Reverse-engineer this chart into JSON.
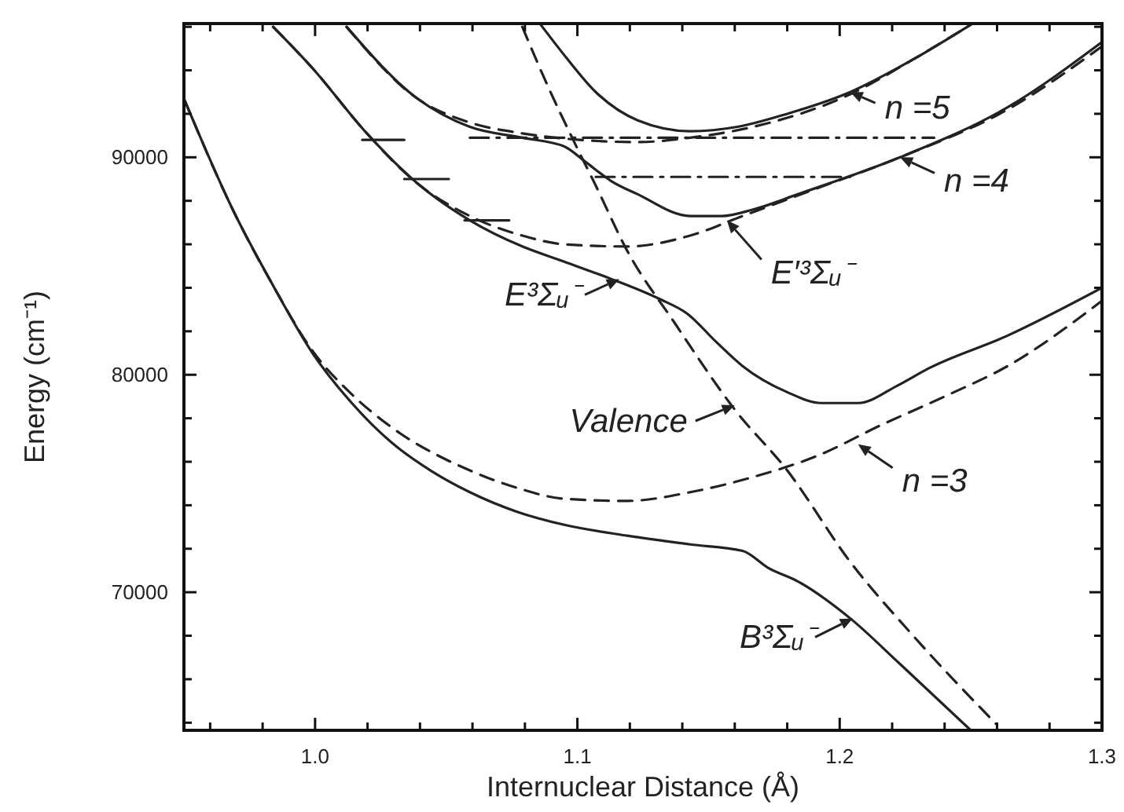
{
  "chart_data": {
    "type": "line",
    "xlabel": "Internuclear Distance (Å)",
    "ylabel": "Energy (cm⁻¹)",
    "xlim": [
      0.95,
      1.3
    ],
    "ylim": [
      63650,
      96150
    ],
    "xticks": [
      {
        "value": 0.96,
        "label": null
      },
      {
        "value": 0.98,
        "label": null
      },
      {
        "value": 1.0,
        "label": "1.0"
      },
      {
        "value": 1.02,
        "label": null
      },
      {
        "value": 1.04,
        "label": null
      },
      {
        "value": 1.06,
        "label": null
      },
      {
        "value": 1.08,
        "label": null
      },
      1.1,
      {
        "value": 1.12,
        "label": null
      },
      {
        "value": 1.14,
        "label": null
      },
      {
        "value": 1.16,
        "label": null
      },
      {
        "value": 1.18,
        "label": null
      },
      1.2,
      {
        "value": 1.22,
        "label": null
      },
      {
        "value": 1.24,
        "label": null
      },
      {
        "value": 1.26,
        "label": null
      },
      {
        "value": 1.28,
        "label": null
      },
      1.3
    ],
    "yticks": [
      {
        "value": 64000,
        "label": null
      },
      {
        "value": 66000,
        "label": null
      },
      {
        "value": 68000,
        "label": null
      },
      70000,
      {
        "value": 72000,
        "label": null
      },
      {
        "value": 74000,
        "label": null
      },
      {
        "value": 76000,
        "label": null
      },
      {
        "value": 78000,
        "label": null
      },
      80000,
      {
        "value": 82000,
        "label": null
      },
      {
        "value": 84000,
        "label": null
      },
      {
        "value": 86000,
        "label": null
      },
      {
        "value": 88000,
        "label": null
      },
      90000,
      {
        "value": 92000,
        "label": null
      },
      {
        "value": 94000,
        "label": null
      },
      {
        "value": 96000,
        "label": null
      }
    ],
    "grid": false,
    "marker": "none",
    "series": [
      {
        "color": "#222222",
        "line_style": "solid",
        "x": [
          0.95,
          0.969,
          0.984,
          0.999,
          1.014,
          1.029,
          1.044,
          1.059,
          1.077,
          1.095,
          1.119,
          1.143,
          1.163,
          1.173,
          1.184,
          1.204,
          1.223,
          1.25
        ],
        "values": [
          92700,
          87500,
          84100,
          81000,
          78700,
          76900,
          75600,
          74600,
          73700,
          73100,
          72600,
          72200,
          71900,
          71100,
          70500,
          68800,
          66700,
          63650
        ]
      },
      {
        "color": "#222222",
        "line_style": "dashed",
        "x": [
          0.95,
          0.969,
          0.984,
          0.999,
          1.014,
          1.029,
          1.059,
          1.077,
          1.095,
          1.119,
          1.143,
          1.167,
          1.192,
          1.216,
          1.24,
          1.264,
          1.3
        ],
        "values": [
          92700,
          87500,
          84100,
          81100,
          79100,
          77600,
          75600,
          74800,
          74300,
          74200,
          74600,
          75300,
          76300,
          77700,
          79000,
          80400,
          83400
        ]
      },
      {
        "color": "#222222",
        "line_style": "dashed",
        "x": [
          1.079,
          1.089,
          1.098,
          1.107,
          1.119,
          1.137,
          1.16,
          1.18,
          1.204,
          1.228,
          1.26
        ],
        "values": [
          96000,
          93200,
          90900,
          88700,
          85700,
          82400,
          78400,
          75600,
          71400,
          68000,
          63900
        ]
      },
      {
        "color": "#222222",
        "line_style": "solid",
        "x": [
          0.984,
          0.999,
          1.019,
          1.039,
          1.059,
          1.079,
          1.095,
          1.113,
          1.131,
          1.142,
          1.153,
          1.163,
          1.18,
          1.193,
          1.207,
          1.222,
          1.234,
          1.264,
          1.3
        ],
        "values": [
          96000,
          94100,
          91200,
          88800,
          87100,
          85900,
          85200,
          84400,
          83500,
          82800,
          81500,
          80400,
          79200,
          78700,
          78700,
          79500,
          80300,
          81800,
          84000
        ]
      },
      {
        "color": "#222222",
        "line_style": "dashed",
        "x": [
          0.984,
          0.999,
          1.019,
          1.039,
          1.059,
          1.079,
          1.095,
          1.119,
          1.143,
          1.163,
          1.192,
          1.223,
          1.264,
          1.3
        ],
        "values": [
          96000,
          94100,
          91200,
          88800,
          87300,
          86400,
          86000,
          85900,
          86400,
          87300,
          88600,
          90000,
          92200,
          95100
        ]
      },
      {
        "color": "#222222",
        "line_style": "solid",
        "x": [
          1.012,
          1.039,
          1.059,
          1.079,
          1.095,
          1.103,
          1.113,
          1.123,
          1.143,
          1.155,
          1.167,
          1.184,
          1.223,
          1.264,
          1.3
        ],
        "values": [
          96000,
          92700,
          91400,
          90900,
          90500,
          89800,
          88900,
          88300,
          87300,
          87300,
          87600,
          88300,
          90000,
          92300,
          95300
        ]
      },
      {
        "color": "#222222",
        "line_style": "dashed",
        "x": [
          1.012,
          1.039,
          1.059,
          1.079,
          1.101,
          1.123,
          1.143,
          1.167,
          1.204,
          1.228,
          1.25
        ],
        "values": [
          96000,
          92700,
          91600,
          91100,
          90800,
          90700,
          90900,
          91400,
          92900,
          94500,
          96100
        ]
      },
      {
        "color": "#222222",
        "line_style": "solid",
        "x": [
          1.086,
          1.095,
          1.107,
          1.123,
          1.143,
          1.161,
          1.18,
          1.204,
          1.228,
          1.25
        ],
        "values": [
          96100,
          94700,
          93000,
          91700,
          91200,
          91400,
          92000,
          93000,
          94500,
          96100
        ]
      },
      {
        "color": "#222222",
        "line_style": "dashdot",
        "x": [
          1.059,
          1.236
        ],
        "values": [
          90900,
          90900
        ]
      },
      {
        "color": "#222222",
        "line_style": "dashdot",
        "x": [
          1.107,
          1.204
        ],
        "values": [
          89100,
          89100
        ]
      },
      {
        "color": "#222222",
        "line_style": "solid",
        "x": [
          1.018,
          1.034
        ],
        "values": [
          90800,
          90800
        ]
      },
      {
        "color": "#222222",
        "line_style": "solid",
        "x": [
          1.034,
          1.051
        ],
        "values": [
          89000,
          89000
        ]
      },
      {
        "color": "#222222",
        "line_style": "solid",
        "x": [
          1.057,
          1.074
        ],
        "values": [
          87100,
          87100
        ]
      }
    ],
    "annotations": [
      {
        "text": "n =5",
        "x": 1.204,
        "y": 93000
      },
      {
        "text": "n =4",
        "x": 1.223,
        "y": 90000
      },
      {
        "text": "E′³Σᵤ⁻",
        "x": 1.157,
        "y": 87100
      },
      {
        "text": "E³Σᵤ⁻",
        "x": 1.116,
        "y": 84400
      },
      {
        "text": "Valence",
        "x": 1.16,
        "y": 78600
      },
      {
        "text": "n =3",
        "x": 1.207,
        "y": 76800
      },
      {
        "text": "B³Σᵤ⁻",
        "x": 1.205,
        "y": 68800
      }
    ]
  }
}
